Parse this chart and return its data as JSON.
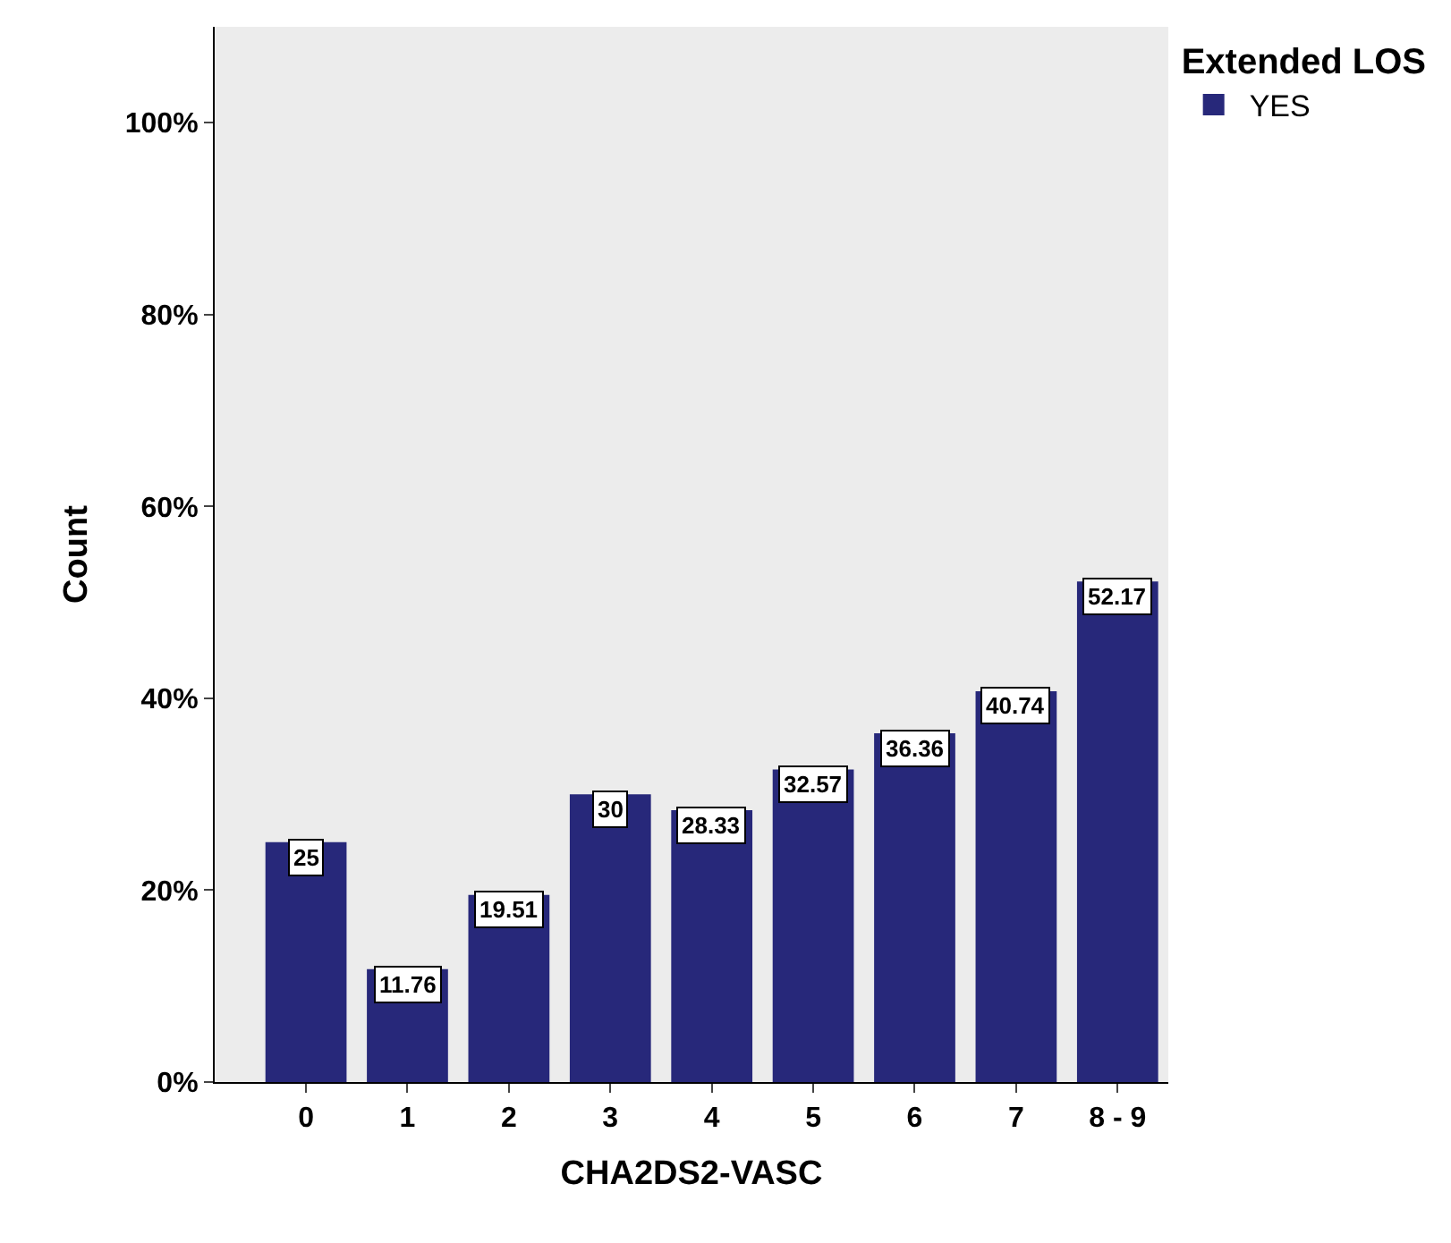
{
  "chart_data": {
    "type": "bar",
    "xlabel": "CHA2DS2-VASC",
    "ylabel": "Count",
    "legend_title": "Extended LOS",
    "categories": [
      "0",
      "1",
      "2",
      "3",
      "4",
      "5",
      "6",
      "7",
      "8 - 9"
    ],
    "series": [
      {
        "name": "YES",
        "color": "#27287a",
        "values": [
          25,
          11.76,
          19.51,
          30,
          28.33,
          32.57,
          36.36,
          40.74,
          52.17
        ]
      }
    ],
    "ylim": [
      0,
      110
    ],
    "yticks": [
      {
        "value": 0,
        "label": "0%"
      },
      {
        "value": 20,
        "label": "20%"
      },
      {
        "value": 40,
        "label": "40%"
      },
      {
        "value": 60,
        "label": "60%"
      },
      {
        "value": 80,
        "label": "80%"
      },
      {
        "value": 100,
        "label": "100%"
      }
    ],
    "data_labels": true,
    "grid": false,
    "legend": "top right"
  }
}
